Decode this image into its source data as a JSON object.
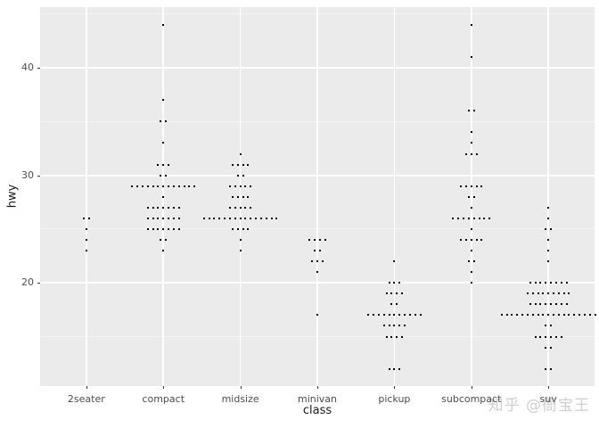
{
  "chart_data": {
    "type": "dotplot",
    "title": "",
    "xlabel": "class",
    "ylabel": "hwy",
    "categories": [
      "2seater",
      "compact",
      "midsize",
      "minivan",
      "pickup",
      "subcompact",
      "suv"
    ],
    "y_major_ticks": [
      20,
      30,
      40
    ],
    "y_minor_gridlines": [
      15,
      25,
      35,
      45
    ],
    "ylim": [
      10.4,
      45.64
    ],
    "legend": "none",
    "grid": "on",
    "series": [
      {
        "category": "2seater",
        "stacks": [
          [
            26,
            2
          ],
          [
            25,
            1
          ],
          [
            24,
            1
          ],
          [
            23,
            1
          ]
        ]
      },
      {
        "category": "compact",
        "stacks": [
          [
            44,
            1
          ],
          [
            37,
            1
          ],
          [
            35,
            2
          ],
          [
            33,
            1
          ],
          [
            31,
            3
          ],
          [
            30,
            2
          ],
          [
            29,
            13
          ],
          [
            28,
            1
          ],
          [
            27,
            7
          ],
          [
            26,
            7
          ],
          [
            25,
            7
          ],
          [
            24,
            2
          ],
          [
            23,
            1
          ]
        ]
      },
      {
        "category": "midsize",
        "stacks": [
          [
            32,
            1
          ],
          [
            31,
            4
          ],
          [
            30,
            2
          ],
          [
            29,
            5
          ],
          [
            28,
            4
          ],
          [
            27,
            5
          ],
          [
            26,
            15
          ],
          [
            25,
            4
          ],
          [
            24,
            1
          ],
          [
            23,
            1
          ]
        ]
      },
      {
        "category": "minivan",
        "stacks": [
          [
            24,
            4
          ],
          [
            23,
            2
          ],
          [
            22,
            3
          ],
          [
            21,
            1
          ],
          [
            17,
            1
          ]
        ]
      },
      {
        "category": "pickup",
        "stacks": [
          [
            22,
            1
          ],
          [
            20,
            3
          ],
          [
            19,
            4
          ],
          [
            18,
            2
          ],
          [
            17,
            11
          ],
          [
            16,
            5
          ],
          [
            15,
            4
          ],
          [
            12,
            3
          ]
        ]
      },
      {
        "category": "subcompact",
        "stacks": [
          [
            44,
            1
          ],
          [
            41,
            1
          ],
          [
            36,
            2
          ],
          [
            34,
            1
          ],
          [
            33,
            1
          ],
          [
            32,
            3
          ],
          [
            29,
            5
          ],
          [
            28,
            2
          ],
          [
            27,
            1
          ],
          [
            26,
            8
          ],
          [
            25,
            1
          ],
          [
            24,
            5
          ],
          [
            23,
            1
          ],
          [
            22,
            2
          ],
          [
            21,
            1
          ],
          [
            20,
            1
          ]
        ]
      },
      {
        "category": "suv",
        "stacks": [
          [
            27,
            1
          ],
          [
            26,
            1
          ],
          [
            25,
            2
          ],
          [
            24,
            1
          ],
          [
            23,
            1
          ],
          [
            22,
            1
          ],
          [
            20,
            8
          ],
          [
            19,
            9
          ],
          [
            18,
            8
          ],
          [
            17,
            19
          ],
          [
            16,
            2
          ],
          [
            15,
            6
          ],
          [
            14,
            2
          ],
          [
            12,
            2
          ]
        ]
      }
    ]
  },
  "watermark": {
    "text": "知乎 @衙宝王"
  },
  "colors": {
    "panel_bg": "#ebebeb",
    "grid_major": "#ffffff",
    "grid_minor": "#f5f5f5",
    "dot": "#000000",
    "axis_text": "#4d4d4d",
    "axis_title": "#1a1a1a",
    "watermark": "#cfcfcf"
  }
}
